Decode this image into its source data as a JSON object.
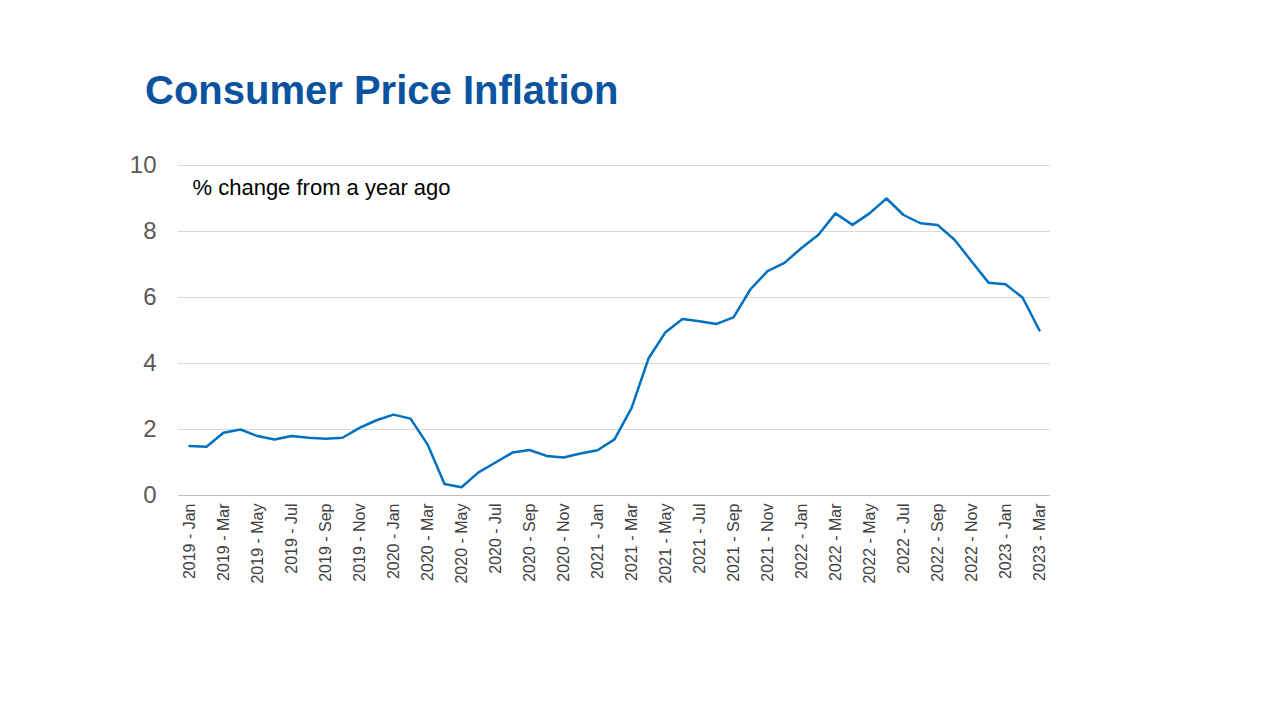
{
  "chart_data": {
    "type": "line",
    "title": "Consumer Price Inflation",
    "annotations": [
      "% change from a year ago"
    ],
    "categories": [
      "2019 - Jan",
      null,
      "2019 - Mar",
      null,
      "2019 - May",
      null,
      "2019 - Jul",
      null,
      "2019 - Sep",
      null,
      "2019 - Nov",
      null,
      "2020 - Jan",
      null,
      "2020 - Mar",
      null,
      "2020 - May",
      null,
      "2020 - Jul",
      null,
      "2020 - Sep",
      null,
      "2020 - Nov",
      null,
      "2021 - Jan",
      null,
      "2021 - Mar",
      null,
      "2021 - May",
      null,
      "2021 - Jul",
      null,
      "2021 - Sep",
      null,
      "2021 - Nov",
      null,
      "2022 - Jan",
      null,
      "2022 - Mar",
      null,
      "2022 - May",
      null,
      "2022 - Jul",
      null,
      "2022 - Sep",
      null,
      "2022 - Nov",
      null,
      "2023 - Jan",
      null,
      "2023 - Mar"
    ],
    "values": [
      1.5,
      1.48,
      1.9,
      2.0,
      1.8,
      1.7,
      1.8,
      1.75,
      1.72,
      1.75,
      2.05,
      2.28,
      2.45,
      2.33,
      1.55,
      0.35,
      0.25,
      0.7,
      1.0,
      1.3,
      1.38,
      1.2,
      1.15,
      1.27,
      1.37,
      1.7,
      2.65,
      4.15,
      4.95,
      5.35,
      5.28,
      5.2,
      5.4,
      6.25,
      6.8,
      7.05,
      7.5,
      7.9,
      8.55,
      8.2,
      8.55,
      9.0,
      8.5,
      8.25,
      8.2,
      7.75,
      7.1,
      6.45,
      6.4,
      6.0,
      5.0
    ],
    "color": "#0070c0",
    "ylim": [
      0,
      10
    ],
    "yticks": [
      0,
      2,
      4,
      6,
      8,
      10
    ],
    "grid": true
  }
}
